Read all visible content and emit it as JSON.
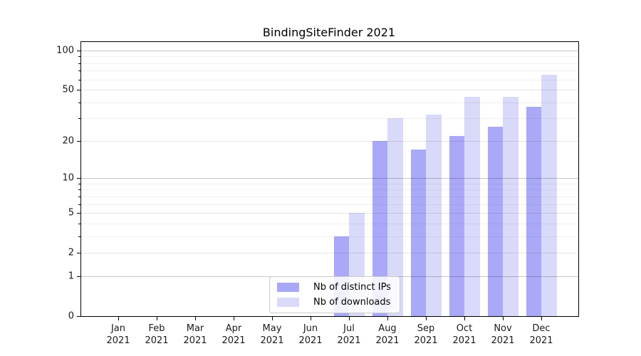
{
  "chart_data": {
    "type": "bar",
    "title": "BindingSiteFinder 2021",
    "categories": [
      "Jan 2021",
      "Feb 2021",
      "Mar 2021",
      "Apr 2021",
      "May 2021",
      "Jun 2021",
      "Jul 2021",
      "Aug 2021",
      "Sep 2021",
      "Oct 2021",
      "Nov 2021",
      "Dec 2021"
    ],
    "series": [
      {
        "name": "Nb of distinct IPs",
        "key": "distinct-ips",
        "color": "#a9a9f8",
        "values": [
          0,
          0,
          0,
          0,
          0,
          0,
          3,
          20,
          17,
          22,
          26,
          37
        ]
      },
      {
        "name": "Nb of downloads",
        "key": "downloads",
        "color": "#d9d9f9",
        "values": [
          0,
          0,
          0,
          0,
          0,
          0,
          5,
          30,
          32,
          44,
          44,
          65
        ]
      }
    ],
    "y_scale": "log1p",
    "ylim": [
      0,
      116
    ],
    "y_major_ticks": [
      0,
      1,
      2,
      5,
      10,
      20,
      50,
      100
    ],
    "y_tick_labels": [
      "0",
      "1",
      "2",
      "5",
      "10",
      "20",
      "50",
      "100"
    ],
    "y_minor_ticks": [
      3,
      4,
      6,
      7,
      8,
      9,
      30,
      40,
      60,
      70,
      80,
      90
    ],
    "y_decade_ticks": [
      1,
      10,
      100
    ],
    "grid": true,
    "legend_position": "lower center",
    "xlabel": "",
    "ylabel": ""
  },
  "colors": {
    "bar_distinct_ips": "#a9a9f8",
    "bar_downloads": "#d9d9f9",
    "grid_decade": "rgba(0,0,0,0.22)",
    "grid_major_light": "rgba(0,0,0,0.10)",
    "grid_minor": "rgba(0,0,0,0.06)",
    "axis": "#000000"
  }
}
